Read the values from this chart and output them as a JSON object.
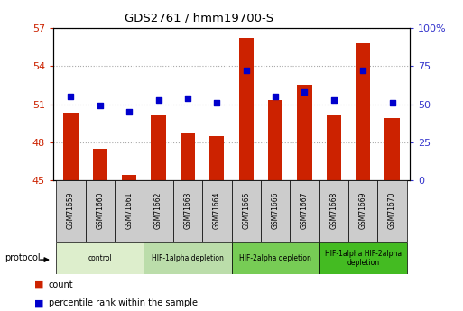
{
  "title": "GDS2761 / hmm19700-S",
  "samples": [
    "GSM71659",
    "GSM71660",
    "GSM71661",
    "GSM71662",
    "GSM71663",
    "GSM71664",
    "GSM71665",
    "GSM71666",
    "GSM71667",
    "GSM71668",
    "GSM71669",
    "GSM71670"
  ],
  "bar_values": [
    50.3,
    47.5,
    45.4,
    50.1,
    48.7,
    48.5,
    56.2,
    51.3,
    52.5,
    50.1,
    55.8,
    49.9
  ],
  "dot_values_pct": [
    55,
    49,
    45,
    53,
    54,
    51,
    72,
    55,
    58,
    53,
    72,
    51
  ],
  "bar_bottom": 45,
  "ylim_left": [
    45,
    57
  ],
  "ylim_right": [
    0,
    100
  ],
  "yticks_left": [
    45,
    48,
    51,
    54,
    57
  ],
  "yticks_right": [
    0,
    25,
    50,
    75,
    100
  ],
  "ytick_labels_left": [
    "45",
    "48",
    "51",
    "54",
    "57"
  ],
  "ytick_labels_right": [
    "0",
    "25",
    "50",
    "75",
    "100%"
  ],
  "bar_color": "#cc2200",
  "dot_color": "#0000cc",
  "grid_color": "#aaaaaa",
  "bg_label": "#cccccc",
  "protocol_groups": [
    {
      "label": "control",
      "start": 0,
      "end": 2,
      "color": "#ddeecc"
    },
    {
      "label": "HIF-1alpha depletion",
      "start": 3,
      "end": 5,
      "color": "#bbddaa"
    },
    {
      "label": "HIF-2alpha depletion",
      "start": 6,
      "end": 8,
      "color": "#77cc55"
    },
    {
      "label": "HIF-1alpha HIF-2alpha\ndepletion",
      "start": 9,
      "end": 11,
      "color": "#44bb22"
    }
  ],
  "legend_count_label": "count",
  "legend_pct_label": "percentile rank within the sample",
  "protocol_label": "protocol",
  "left_tick_color": "#cc2200",
  "right_tick_color": "#3333cc"
}
